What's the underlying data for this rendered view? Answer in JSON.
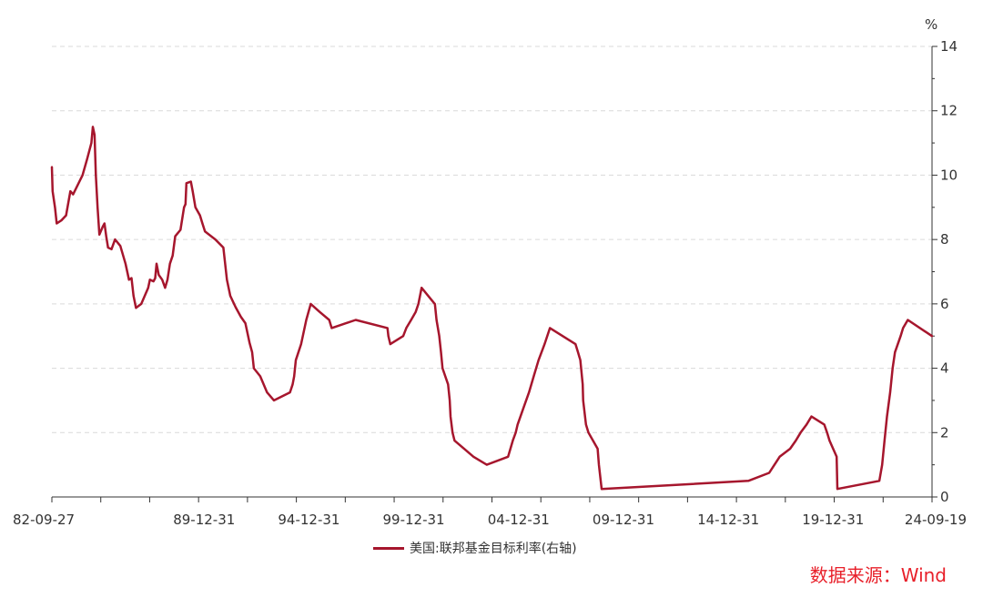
{
  "chart_data": {
    "type": "line",
    "title": "",
    "y_unit": "%",
    "y_axis_side": "right",
    "ylim": [
      0,
      14
    ],
    "y_ticks": [
      0,
      2,
      4,
      6,
      8,
      10,
      12,
      14
    ],
    "x_tick_labels": [
      "82-09-27",
      "89-12-31",
      "94-12-31",
      "99-12-31",
      "04-12-31",
      "09-12-31",
      "14-12-31",
      "19-12-31",
      "24-09-19"
    ],
    "x_tick_positions": [
      "1982-09-27",
      "1989-12-31",
      "1994-12-31",
      "1999-12-31",
      "2004-12-31",
      "2009-12-31",
      "2014-12-31",
      "2019-12-31",
      "2024-09-19"
    ],
    "xlim": [
      "1982-09-27",
      "2024-09-19"
    ],
    "grid": "horizontal dashed",
    "legend_position": "bottom",
    "series": [
      {
        "name": "美国:联邦基金目标利率(右轴)",
        "color": "#a6162d",
        "points": [
          [
            "1982-09-27",
            10.25
          ],
          [
            "1982-10-10",
            9.5
          ],
          [
            "1982-11-20",
            9.0
          ],
          [
            "1982-12-20",
            8.5
          ],
          [
            "1983-03-15",
            8.6
          ],
          [
            "1983-06-01",
            8.75
          ],
          [
            "1983-08-15",
            9.5
          ],
          [
            "1983-10-01",
            9.4
          ],
          [
            "1984-03-15",
            10.0
          ],
          [
            "1984-06-01",
            10.5
          ],
          [
            "1984-08-15",
            11.0
          ],
          [
            "1984-09-10",
            11.5
          ],
          [
            "1984-10-10",
            11.25
          ],
          [
            "1984-11-01",
            10.0
          ],
          [
            "1984-12-01",
            9.0
          ],
          [
            "1985-01-01",
            8.15
          ],
          [
            "1985-03-01",
            8.4
          ],
          [
            "1985-04-01",
            8.5
          ],
          [
            "1985-05-01",
            8.1
          ],
          [
            "1985-06-01",
            7.75
          ],
          [
            "1985-08-01",
            7.7
          ],
          [
            "1985-10-01",
            8.0
          ],
          [
            "1986-01-01",
            7.8
          ],
          [
            "1986-04-01",
            7.25
          ],
          [
            "1986-06-01",
            6.75
          ],
          [
            "1986-07-15",
            6.8
          ],
          [
            "1986-08-20",
            6.25
          ],
          [
            "1986-10-01",
            5.875
          ],
          [
            "1987-01-01",
            6.0
          ],
          [
            "1987-05-01",
            6.5
          ],
          [
            "1987-06-01",
            6.75
          ],
          [
            "1987-08-01",
            6.7
          ],
          [
            "1987-09-01",
            6.8
          ],
          [
            "1987-09-25",
            7.25
          ],
          [
            "1987-11-01",
            6.9
          ],
          [
            "1988-01-01",
            6.75
          ],
          [
            "1988-02-20",
            6.5
          ],
          [
            "1988-04-01",
            6.75
          ],
          [
            "1988-05-15",
            7.25
          ],
          [
            "1988-07-01",
            7.5
          ],
          [
            "1988-08-15",
            8.1
          ],
          [
            "1988-11-15",
            8.3
          ],
          [
            "1989-01-15",
            9.0
          ],
          [
            "1989-02-10",
            9.1
          ],
          [
            "1989-02-25",
            9.75
          ],
          [
            "1989-05-15",
            9.8
          ],
          [
            "1989-06-15",
            9.5
          ],
          [
            "1989-08-01",
            9.0
          ],
          [
            "1989-10-20",
            8.75
          ],
          [
            "1989-12-01",
            8.5
          ],
          [
            "1990-01-15",
            8.25
          ],
          [
            "1990-07-15",
            8.0
          ],
          [
            "1990-12-01",
            7.75
          ],
          [
            "1991-02-01",
            6.75
          ],
          [
            "1991-04-01",
            6.25
          ],
          [
            "1991-07-01",
            5.9
          ],
          [
            "1991-10-01",
            5.6
          ],
          [
            "1991-12-20",
            5.4
          ],
          [
            "1992-03-01",
            4.8
          ],
          [
            "1992-04-15",
            4.5
          ],
          [
            "1992-05-15",
            4.0
          ],
          [
            "1992-09-04",
            3.75
          ],
          [
            "1993-01-01",
            3.25
          ],
          [
            "1993-05-01",
            3.0
          ],
          [
            "1994-02-04",
            3.25
          ],
          [
            "1994-03-22",
            3.5
          ],
          [
            "1994-04-18",
            3.75
          ],
          [
            "1994-05-17",
            4.25
          ],
          [
            "1994-08-16",
            4.75
          ],
          [
            "1994-11-15",
            5.5
          ],
          [
            "1995-02-01",
            6.0
          ],
          [
            "1995-07-06",
            5.75
          ],
          [
            "1995-12-19",
            5.5
          ],
          [
            "1996-01-31",
            5.25
          ],
          [
            "1997-03-25",
            5.5
          ],
          [
            "1998-09-29",
            5.25
          ],
          [
            "1998-10-15",
            5.0
          ],
          [
            "1998-11-17",
            4.75
          ],
          [
            "1999-06-30",
            5.0
          ],
          [
            "1999-08-24",
            5.25
          ],
          [
            "1999-11-16",
            5.5
          ],
          [
            "2000-02-02",
            5.75
          ],
          [
            "2000-03-21",
            6.0
          ],
          [
            "2000-05-16",
            6.5
          ],
          [
            "2000-12-31",
            6.0
          ],
          [
            "2001-01-03",
            6.0
          ],
          [
            "2001-01-31",
            5.5
          ],
          [
            "2001-03-20",
            5.0
          ],
          [
            "2001-04-18",
            4.5
          ],
          [
            "2001-05-15",
            4.0
          ],
          [
            "2001-08-21",
            3.5
          ],
          [
            "2001-09-17",
            3.0
          ],
          [
            "2001-10-02",
            2.5
          ],
          [
            "2001-11-06",
            2.0
          ],
          [
            "2001-12-11",
            1.75
          ],
          [
            "2002-11-06",
            1.25
          ],
          [
            "2003-06-25",
            1.0
          ],
          [
            "2004-06-30",
            1.25
          ],
          [
            "2004-08-10",
            1.5
          ],
          [
            "2004-09-21",
            1.75
          ],
          [
            "2004-11-10",
            2.0
          ],
          [
            "2004-12-14",
            2.25
          ],
          [
            "2005-03-22",
            2.75
          ],
          [
            "2005-06-30",
            3.25
          ],
          [
            "2005-09-20",
            3.75
          ],
          [
            "2005-12-13",
            4.25
          ],
          [
            "2006-03-28",
            4.75
          ],
          [
            "2006-06-29",
            5.25
          ],
          [
            "2007-09-18",
            4.75
          ],
          [
            "2007-10-31",
            4.5
          ],
          [
            "2007-12-11",
            4.25
          ],
          [
            "2008-01-22",
            3.5
          ],
          [
            "2008-01-30",
            3.0
          ],
          [
            "2008-03-18",
            2.25
          ],
          [
            "2008-04-30",
            2.0
          ],
          [
            "2008-10-08",
            1.5
          ],
          [
            "2008-10-29",
            1.0
          ],
          [
            "2008-12-16",
            0.25
          ],
          [
            "2015-12-16",
            0.5
          ],
          [
            "2016-12-14",
            0.75
          ],
          [
            "2017-03-15",
            1.0
          ],
          [
            "2017-06-14",
            1.25
          ],
          [
            "2017-12-13",
            1.5
          ],
          [
            "2018-03-21",
            1.75
          ],
          [
            "2018-06-13",
            2.0
          ],
          [
            "2018-09-26",
            2.25
          ],
          [
            "2018-12-19",
            2.5
          ],
          [
            "2019-07-31",
            2.25
          ],
          [
            "2019-09-18",
            2.0
          ],
          [
            "2019-10-30",
            1.75
          ],
          [
            "2020-03-03",
            1.25
          ],
          [
            "2020-03-15",
            0.25
          ],
          [
            "2022-03-16",
            0.5
          ],
          [
            "2022-05-04",
            1.0
          ],
          [
            "2022-06-15",
            1.75
          ],
          [
            "2022-07-27",
            2.5
          ],
          [
            "2022-09-21",
            3.25
          ],
          [
            "2022-11-02",
            4.0
          ],
          [
            "2022-12-14",
            4.5
          ],
          [
            "2023-02-01",
            4.75
          ],
          [
            "2023-03-22",
            5.0
          ],
          [
            "2023-05-03",
            5.25
          ],
          [
            "2023-07-26",
            5.5
          ],
          [
            "2024-09-18",
            5.0
          ]
        ]
      }
    ]
  },
  "legend": {
    "label": "美国:联邦基金目标利率(右轴)"
  },
  "source": {
    "text": "数据来源：Wind",
    "color": "#e8202a"
  }
}
